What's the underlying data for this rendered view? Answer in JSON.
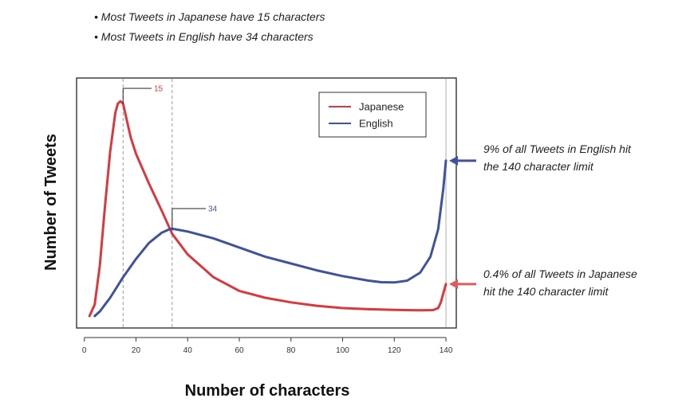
{
  "notes": [
    "• Most Tweets in Japanese have 15 characters",
    "• Most Tweets in English have 34 characters"
  ],
  "annotations": {
    "english_line1": "9% of all Tweets in English hit",
    "english_line2": "the 140 character limit",
    "japanese_line1": "0.4% of all Tweets in Japanese",
    "japanese_line2": "hit the 140 character limit"
  },
  "colors": {
    "japanese": "#d9393e",
    "english": "#3f529a",
    "arrow_english": "#3f529a",
    "arrow_japanese": "#e05a5f",
    "ref_lines": "#999999"
  },
  "chart_data": {
    "type": "line",
    "xlabel": "Number of characters",
    "ylabel": "Number of Tweets",
    "xlim": [
      -3,
      144
    ],
    "ylim": [
      0,
      100
    ],
    "x_ticks": [
      0,
      20,
      40,
      60,
      80,
      100,
      120,
      140
    ],
    "y_ticks_shown": false,
    "grid": false,
    "legend": "top-right",
    "series": [
      {
        "name": "Japanese",
        "color": "#d9393e",
        "points": [
          [
            2,
            0
          ],
          [
            4,
            5
          ],
          [
            6,
            22
          ],
          [
            8,
            48
          ],
          [
            10,
            72
          ],
          [
            12,
            89
          ],
          [
            13,
            93
          ],
          [
            14,
            94
          ],
          [
            15,
            93
          ],
          [
            16,
            88
          ],
          [
            18,
            78
          ],
          [
            20,
            71
          ],
          [
            25,
            58
          ],
          [
            30,
            46
          ],
          [
            34,
            36
          ],
          [
            40,
            27
          ],
          [
            50,
            17
          ],
          [
            60,
            11
          ],
          [
            70,
            8
          ],
          [
            80,
            6
          ],
          [
            90,
            4.5
          ],
          [
            100,
            3.5
          ],
          [
            110,
            3
          ],
          [
            120,
            2.7
          ],
          [
            130,
            2.5
          ],
          [
            135,
            2.6
          ],
          [
            137,
            3.5
          ],
          [
            138,
            6
          ],
          [
            139,
            10
          ],
          [
            140,
            14
          ]
        ]
      },
      {
        "name": "English",
        "color": "#3f529a",
        "points": [
          [
            4,
            0
          ],
          [
            6,
            2
          ],
          [
            10,
            8
          ],
          [
            15,
            17
          ],
          [
            20,
            25
          ],
          [
            25,
            32
          ],
          [
            30,
            36.5
          ],
          [
            33,
            38
          ],
          [
            34,
            38.2
          ],
          [
            35,
            38
          ],
          [
            40,
            37
          ],
          [
            50,
            34
          ],
          [
            60,
            30
          ],
          [
            70,
            26
          ],
          [
            80,
            23
          ],
          [
            90,
            20
          ],
          [
            100,
            17.5
          ],
          [
            110,
            15.5
          ],
          [
            115,
            14.8
          ],
          [
            120,
            14.7
          ],
          [
            125,
            15.5
          ],
          [
            130,
            19
          ],
          [
            134,
            26
          ],
          [
            137,
            38
          ],
          [
            139,
            56
          ],
          [
            140,
            68
          ]
        ]
      }
    ],
    "peak_labels": [
      {
        "x": 15,
        "label": "15",
        "series": "Japanese"
      },
      {
        "x": 34,
        "label": "34",
        "series": "English"
      }
    ],
    "vertical_reference_lines": [
      15,
      34,
      140
    ]
  }
}
